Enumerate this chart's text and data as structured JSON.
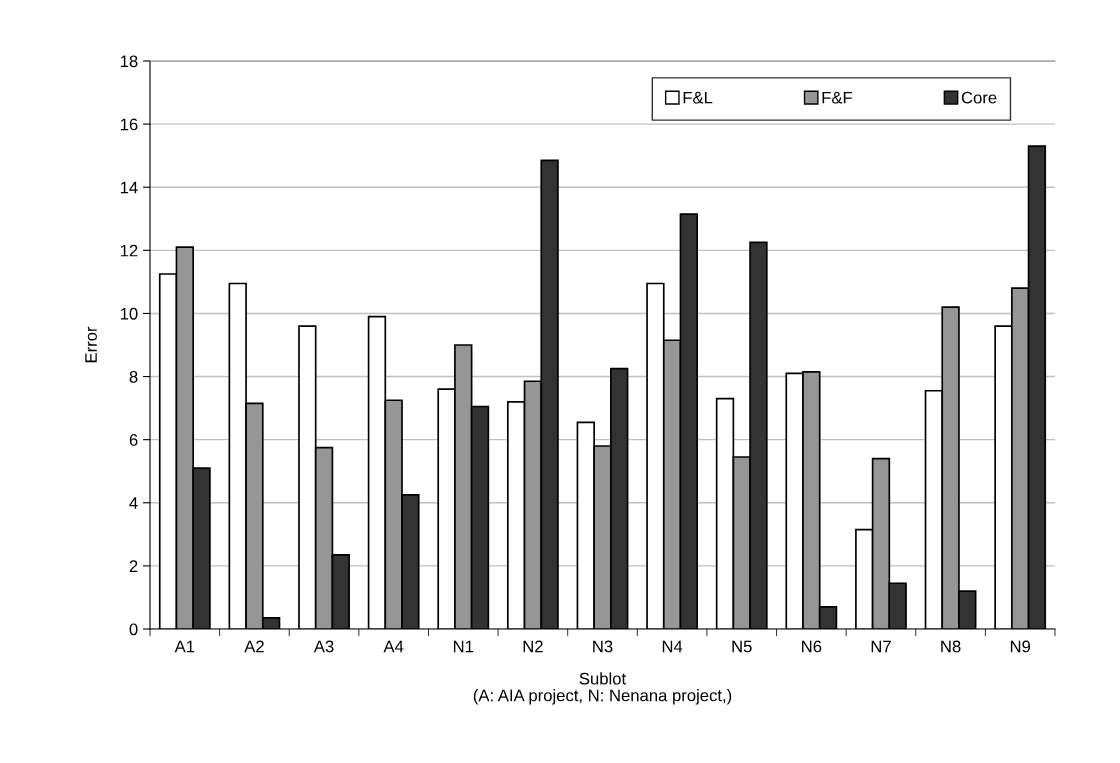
{
  "chart_data": {
    "type": "bar",
    "xlabel": "Sublot\n(A: AIA project, N: Nenana project,)",
    "ylabel": "Error",
    "categories": [
      "A1",
      "A2",
      "A3",
      "A4",
      "N1",
      "N2",
      "N3",
      "N4",
      "N5",
      "N6",
      "N7",
      "N8",
      "N9"
    ],
    "series": [
      {
        "name": "F&L",
        "color": "#ffffff",
        "values": [
          11.25,
          10.95,
          9.6,
          9.9,
          7.6,
          7.2,
          6.55,
          10.95,
          7.3,
          8.1,
          3.15,
          7.55,
          9.6
        ]
      },
      {
        "name": "F&F",
        "color": "#969696",
        "values": [
          12.1,
          7.15,
          5.75,
          7.25,
          9.0,
          7.85,
          5.8,
          9.15,
          5.45,
          8.15,
          5.4,
          10.2,
          10.8
        ]
      },
      {
        "name": "Core",
        "color": "#333333",
        "values": [
          5.1,
          0.35,
          2.35,
          4.25,
          7.05,
          14.85,
          8.25,
          13.15,
          12.25,
          0.7,
          1.45,
          1.2,
          15.3
        ]
      }
    ],
    "ylim": [
      0,
      18
    ],
    "yticks": [
      0,
      2,
      4,
      6,
      8,
      10,
      12,
      14,
      16,
      18
    ],
    "grid": "y",
    "legend": "top right"
  }
}
